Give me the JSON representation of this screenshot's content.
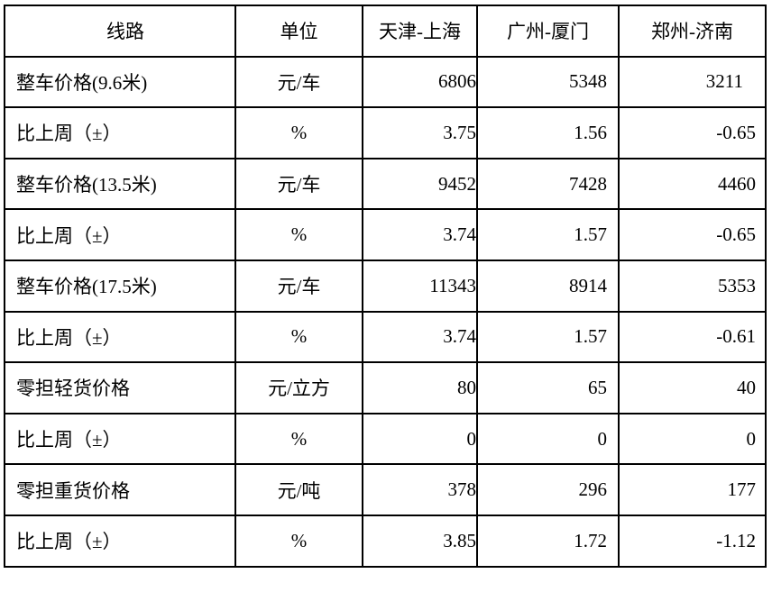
{
  "table": {
    "headers": [
      "线路",
      "单位",
      "天津-上海",
      "广州-厦门",
      "郑州-济南"
    ],
    "rows": [
      [
        "整车价格(9.6米)",
        "元/车",
        "6806",
        "5348",
        "3211"
      ],
      [
        "比上周（±）",
        "%",
        "3.75",
        "1.56",
        "-0.65"
      ],
      [
        "整车价格(13.5米)",
        "元/车",
        "9452",
        "7428",
        "4460"
      ],
      [
        "比上周（±）",
        "%",
        "3.74",
        "1.57",
        "-0.65"
      ],
      [
        "整车价格(17.5米)",
        "元/车",
        "11343",
        "8914",
        "5353"
      ],
      [
        "比上周（±）",
        "%",
        "3.74",
        "1.57",
        "-0.61"
      ],
      [
        "零担轻货价格",
        "元/立方",
        "80",
        "65",
        "40"
      ],
      [
        "比上周（±）",
        "%",
        "0",
        "0",
        "0"
      ],
      [
        "零担重货价格",
        "元/吨",
        "378",
        "296",
        "177"
      ],
      [
        "比上周（±）",
        "%",
        "3.85",
        "1.72",
        "-1.12"
      ]
    ]
  }
}
